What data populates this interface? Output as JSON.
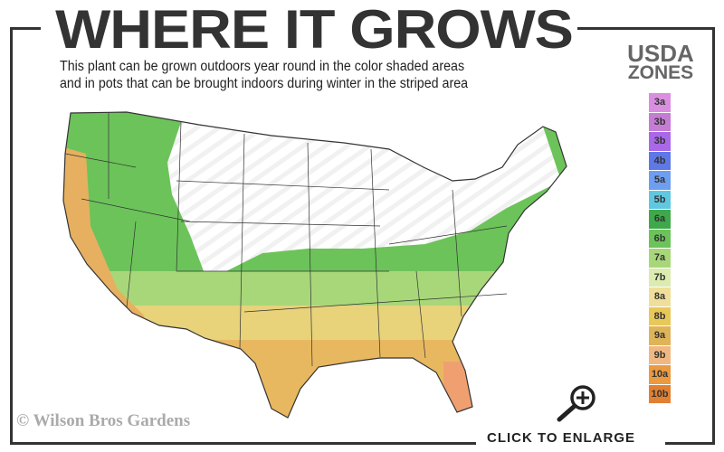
{
  "header": {
    "title": "WHERE IT GROWS",
    "subtitle_line1": "This plant can be grown outdoors year round in the color shaded areas",
    "subtitle_line2": "and in pots that can be brought indoors during winter in the striped area"
  },
  "legend": {
    "title_line1": "USDA",
    "title_line2": "ZONES",
    "zones": [
      {
        "label": "3a",
        "color": "#d98ee0"
      },
      {
        "label": "3b",
        "color": "#c57cd4"
      },
      {
        "label": "3b",
        "color": "#a868e8"
      },
      {
        "label": "4b",
        "color": "#5f78e6"
      },
      {
        "label": "5a",
        "color": "#6e9ef0"
      },
      {
        "label": "5b",
        "color": "#5fc8e0"
      },
      {
        "label": "6a",
        "color": "#3fa84a"
      },
      {
        "label": "6b",
        "color": "#6cc35a"
      },
      {
        "label": "7a",
        "color": "#a8d77a"
      },
      {
        "label": "7b",
        "color": "#dcebb0"
      },
      {
        "label": "8a",
        "color": "#efdf9a"
      },
      {
        "label": "8b",
        "color": "#e8c858"
      },
      {
        "label": "9a",
        "color": "#dfb458"
      },
      {
        "label": "9b",
        "color": "#f0b880"
      },
      {
        "label": "10a",
        "color": "#eb9a40"
      },
      {
        "label": "10b",
        "color": "#e08030"
      }
    ]
  },
  "footer": {
    "copyright": "© Wilson Bros Gardens",
    "enlarge_label": "CLICK TO ENLARGE",
    "enlarge_icon": "magnifier-plus-icon"
  }
}
